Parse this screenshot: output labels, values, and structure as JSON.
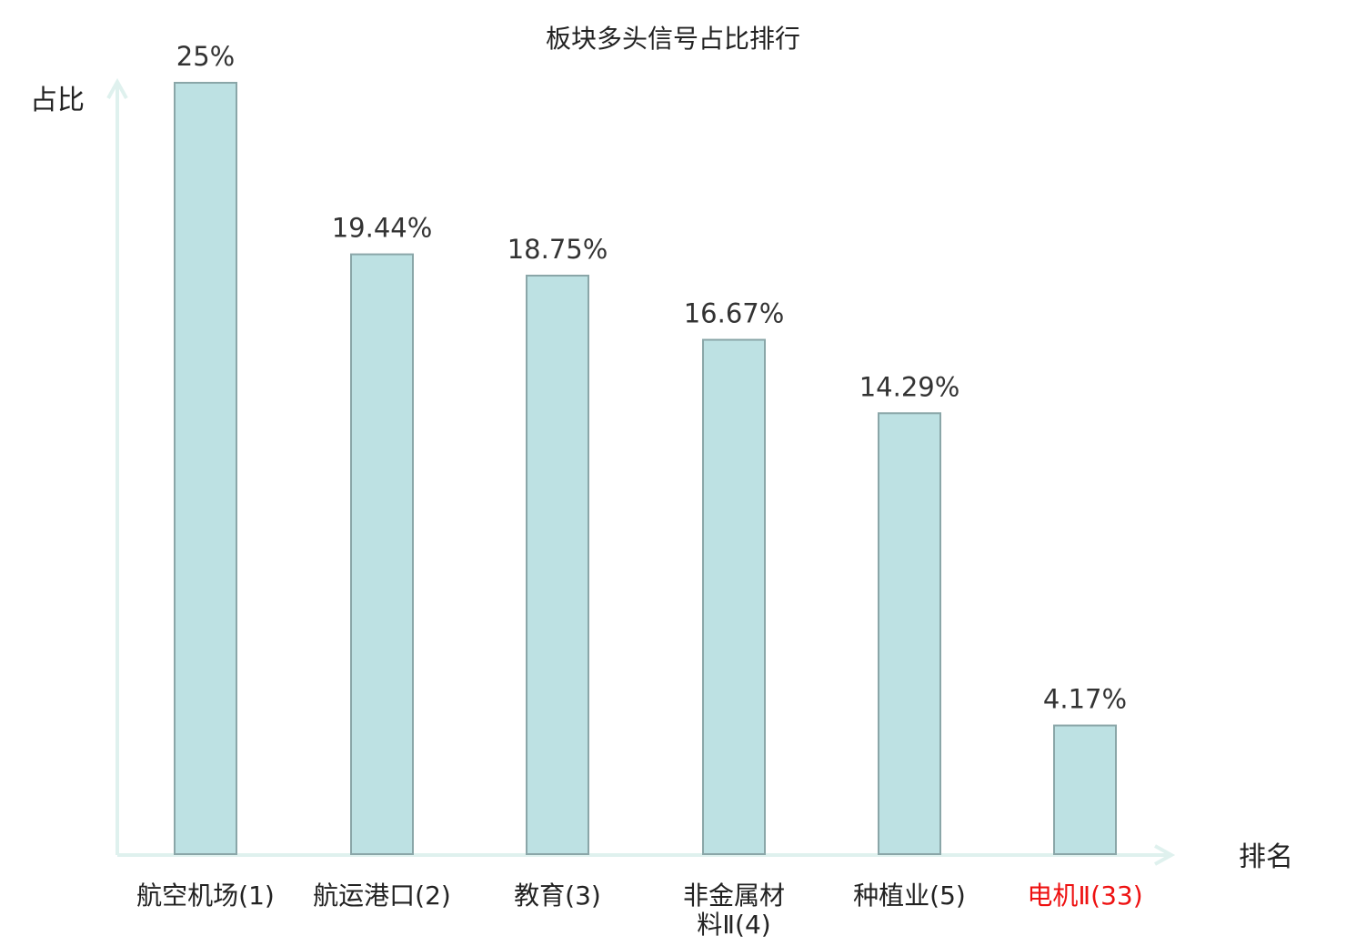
{
  "chart_data": {
    "type": "bar",
    "title": "板块多头信号占比排行",
    "xlabel": "排名",
    "ylabel": "占比",
    "ylim": [
      0,
      25
    ],
    "categories": [
      [
        "航空机场(1)"
      ],
      [
        "航运港口(2)"
      ],
      [
        "教育(3)"
      ],
      [
        "非金属材",
        "料Ⅱ(4)"
      ],
      [
        "种植业(5)"
      ],
      [
        "电机Ⅱ(33)"
      ]
    ],
    "values": [
      25,
      19.44,
      18.75,
      16.67,
      14.29,
      4.17
    ],
    "value_labels": [
      "25%",
      "19.44%",
      "18.75%",
      "16.67%",
      "14.29%",
      "4.17%"
    ],
    "highlight_index": 5,
    "colors": {
      "bar_fill": "#bde1e3",
      "bar_stroke": "#8aa6a8",
      "axis": "#dff1ee",
      "text": "#333333",
      "highlight_text": "#ee1111"
    }
  }
}
